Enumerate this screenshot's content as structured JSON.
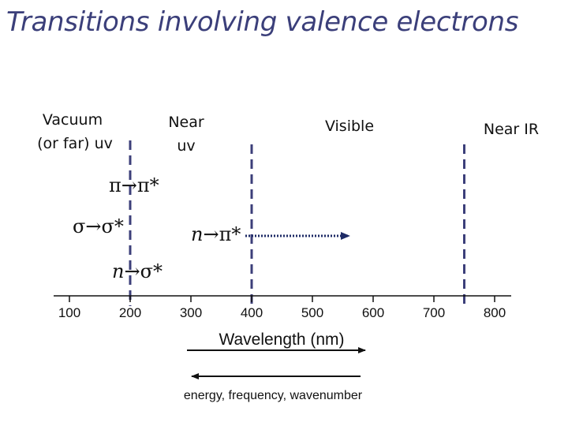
{
  "title": "Transitions involving valence electrons",
  "regions": {
    "vacuum_line1": "Vacuum",
    "vacuum_line2": "(or far) uv",
    "near_uv_line1": "Near",
    "near_uv_line2": "uv",
    "visible": "Visible",
    "near_ir": "Near IR"
  },
  "transitions": {
    "pi_pi_star": "π→π*",
    "sigma_sigma_star": "σ→σ*",
    "n_pi_star_prefix": "n",
    "n_pi_star_rest": "→π*",
    "n_sigma_star_prefix": "n",
    "n_sigma_star_rest": "→σ*"
  },
  "axis": {
    "label": "Wavelength (nm)",
    "ticks": [
      "100",
      "200",
      "300",
      "400",
      "500",
      "600",
      "700",
      "800"
    ]
  },
  "boundaries_nm": [
    200,
    400,
    750
  ],
  "n_pi_star_extends_to_nm": 570,
  "footer": "energy, frequency, wavenumber",
  "colors": {
    "title": "#3b3f7a",
    "boundary": "#3c3f7a",
    "arrow": "#1e2b66"
  }
}
